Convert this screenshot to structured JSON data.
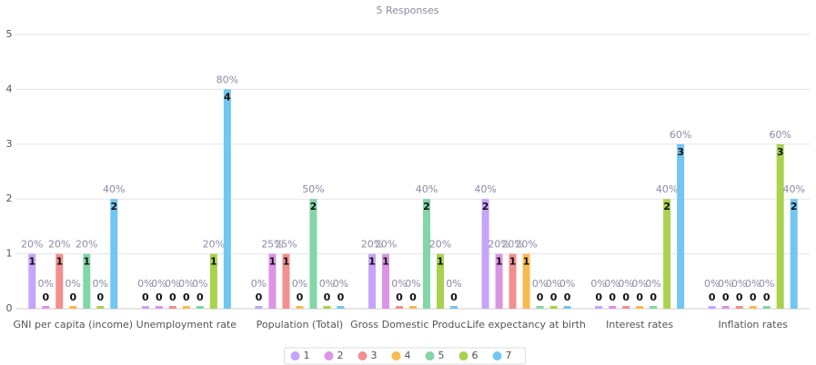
{
  "chart_data": {
    "type": "bar",
    "title": "5 Responses",
    "categories": [
      "GNI per capita (income)",
      "Unemployment rate",
      "Population (Total)",
      "Gross Domestic Produc...",
      "Life expectancy at birth",
      "Interest rates",
      "Inflation rates"
    ],
    "series": [
      {
        "name": "1",
        "color": "#c6a4f7",
        "values": [
          1,
          0,
          0,
          1,
          2,
          0,
          0
        ],
        "percent_labels": [
          "20%",
          "0%",
          "0%",
          "20%",
          "40%",
          "0%",
          "0%"
        ]
      },
      {
        "name": "2",
        "color": "#dc94e4",
        "values": [
          0,
          0,
          1,
          1,
          1,
          0,
          0
        ],
        "percent_labels": [
          "0%",
          "0%",
          "25%",
          "20%",
          "20%",
          "0%",
          "0%"
        ]
      },
      {
        "name": "3",
        "color": "#f28f8f",
        "values": [
          1,
          0,
          1,
          0,
          1,
          0,
          0
        ],
        "percent_labels": [
          "20%",
          "0%",
          "25%",
          "0%",
          "20%",
          "0%",
          "0%"
        ]
      },
      {
        "name": "4",
        "color": "#f7bb4f",
        "values": [
          0,
          0,
          0,
          0,
          1,
          0,
          0
        ],
        "percent_labels": [
          "0%",
          "0%",
          "0%",
          "0%",
          "20%",
          "0%",
          "0%"
        ]
      },
      {
        "name": "5",
        "color": "#83d6a6",
        "values": [
          1,
          0,
          2,
          2,
          0,
          0,
          0
        ],
        "percent_labels": [
          "20%",
          "0%",
          "50%",
          "40%",
          "0%",
          "0%",
          "0%"
        ]
      },
      {
        "name": "6",
        "color": "#a9d24e",
        "values": [
          0,
          1,
          0,
          1,
          0,
          2,
          3
        ],
        "percent_labels": [
          "0%",
          "20%",
          "0%",
          "20%",
          "0%",
          "40%",
          "60%"
        ]
      },
      {
        "name": "7",
        "color": "#72c6f2",
        "values": [
          2,
          4,
          0,
          0,
          0,
          3,
          2
        ],
        "percent_labels": [
          "40%",
          "80%",
          "0%",
          "0%",
          "0%",
          "60%",
          "40%"
        ]
      }
    ],
    "ylim": [
      0,
      5
    ],
    "yticks": [
      0,
      1,
      2,
      3,
      4,
      5
    ],
    "grid": true,
    "legend": "bottom"
  }
}
